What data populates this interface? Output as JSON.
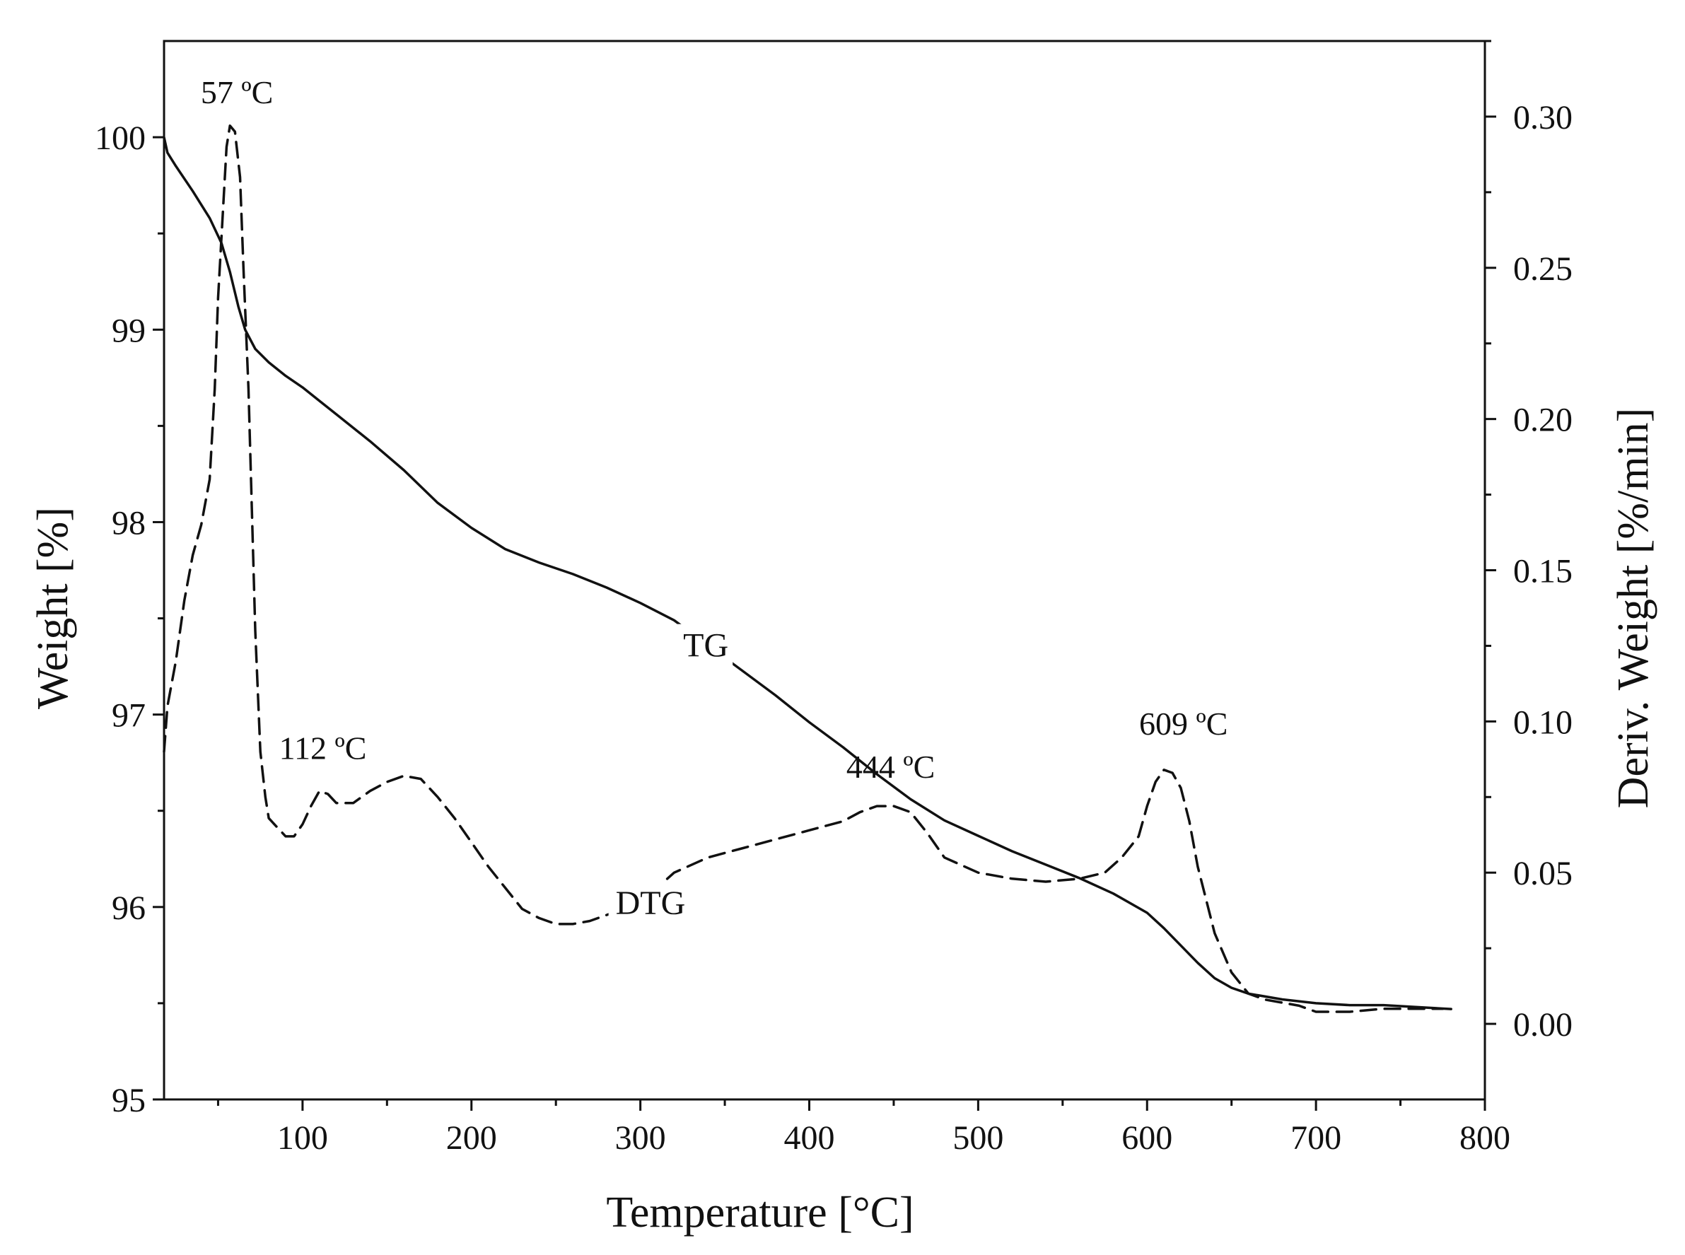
{
  "chart_data": {
    "type": "line",
    "title": "",
    "xlabel": "Temperature [°C]",
    "ylabel_left": "Weight [%]",
    "ylabel_right": "Deriv. Weight [%/min]",
    "xlim": [
      18,
      800
    ],
    "ylim_left": [
      95,
      100.5
    ],
    "ylim_right": [
      -0.025,
      0.325
    ],
    "x_ticks": [
      100,
      200,
      300,
      400,
      500,
      600,
      700,
      800
    ],
    "y_left_ticks": [
      95,
      96,
      97,
      98,
      99,
      100
    ],
    "y_right_ticks": [
      0.0,
      0.05,
      0.1,
      0.15,
      0.2,
      0.25,
      0.3
    ],
    "y_right_tick_labels": [
      "0.00",
      "0.05",
      "0.10",
      "0.15",
      "0.20",
      "0.25",
      "0.30"
    ],
    "grid": false,
    "series": [
      {
        "name": "TG",
        "axis": "left",
        "style": "solid",
        "x": [
          18,
          20,
          25,
          35,
          45,
          52,
          57,
          62,
          66,
          72,
          80,
          90,
          100,
          110,
          120,
          140,
          160,
          180,
          200,
          220,
          240,
          260,
          280,
          300,
          320,
          340,
          360,
          380,
          400,
          420,
          440,
          460,
          480,
          500,
          520,
          540,
          560,
          580,
          600,
          610,
          620,
          630,
          640,
          650,
          660,
          680,
          700,
          720,
          740,
          760,
          780
        ],
        "y": [
          100.0,
          99.92,
          99.85,
          99.72,
          99.58,
          99.45,
          99.3,
          99.12,
          99.0,
          98.9,
          98.83,
          98.76,
          98.7,
          98.63,
          98.56,
          98.42,
          98.27,
          98.1,
          97.97,
          97.86,
          97.79,
          97.73,
          97.66,
          97.58,
          97.49,
          97.36,
          97.23,
          97.1,
          96.96,
          96.83,
          96.69,
          96.56,
          96.45,
          96.37,
          96.29,
          96.22,
          96.15,
          96.07,
          95.97,
          95.89,
          95.8,
          95.71,
          95.63,
          95.58,
          95.55,
          95.52,
          95.5,
          95.49,
          95.49,
          95.48,
          95.47
        ]
      },
      {
        "name": "DTG",
        "axis": "right",
        "style": "dashed",
        "x": [
          18,
          20,
          25,
          30,
          35,
          40,
          45,
          48,
          50,
          53,
          55,
          57,
          60,
          63,
          65,
          68,
          70,
          72,
          75,
          78,
          80,
          85,
          90,
          95,
          100,
          105,
          110,
          115,
          120,
          130,
          140,
          150,
          160,
          170,
          180,
          190,
          200,
          210,
          220,
          230,
          240,
          250,
          260,
          270,
          280,
          290,
          300,
          320,
          340,
          360,
          380,
          400,
          420,
          430,
          440,
          450,
          460,
          470,
          480,
          500,
          520,
          540,
          560,
          575,
          585,
          595,
          600,
          605,
          610,
          615,
          620,
          625,
          630,
          640,
          650,
          660,
          670,
          680,
          690,
          700,
          720,
          740,
          760,
          775
        ],
        "y": [
          0.09,
          0.105,
          0.12,
          0.14,
          0.155,
          0.165,
          0.18,
          0.21,
          0.24,
          0.27,
          0.29,
          0.297,
          0.295,
          0.28,
          0.25,
          0.21,
          0.17,
          0.13,
          0.09,
          0.075,
          0.068,
          0.065,
          0.062,
          0.062,
          0.066,
          0.072,
          0.077,
          0.076,
          0.073,
          0.073,
          0.077,
          0.08,
          0.082,
          0.081,
          0.075,
          0.068,
          0.06,
          0.052,
          0.045,
          0.038,
          0.035,
          0.033,
          0.033,
          0.034,
          0.036,
          0.038,
          0.04,
          0.05,
          0.055,
          0.058,
          0.061,
          0.064,
          0.067,
          0.07,
          0.072,
          0.072,
          0.07,
          0.063,
          0.055,
          0.05,
          0.048,
          0.047,
          0.048,
          0.05,
          0.055,
          0.062,
          0.072,
          0.08,
          0.084,
          0.083,
          0.078,
          0.067,
          0.052,
          0.03,
          0.017,
          0.01,
          0.008,
          0.007,
          0.006,
          0.004,
          0.004,
          0.005,
          0.005,
          0.005
        ]
      }
    ],
    "annotations": [
      {
        "text": "57 ºC",
        "x": 57,
        "y": 0.297,
        "axis": "right"
      },
      {
        "text": "112 ºC",
        "x": 112,
        "y": 0.077,
        "axis": "right"
      },
      {
        "text": "444 ºC",
        "x": 444,
        "y": 0.072,
        "axis": "right"
      },
      {
        "text": "609 ºC",
        "x": 609,
        "y": 0.084,
        "axis": "right"
      }
    ],
    "curve_labels": [
      {
        "text": "TG",
        "x": 340,
        "y": 97.36,
        "axis": "left"
      },
      {
        "text": "DTG",
        "x": 300,
        "y": 0.04,
        "axis": "right"
      }
    ]
  },
  "colors": {
    "line": "#111111",
    "axes": "#111111",
    "background": "#ffffff"
  }
}
